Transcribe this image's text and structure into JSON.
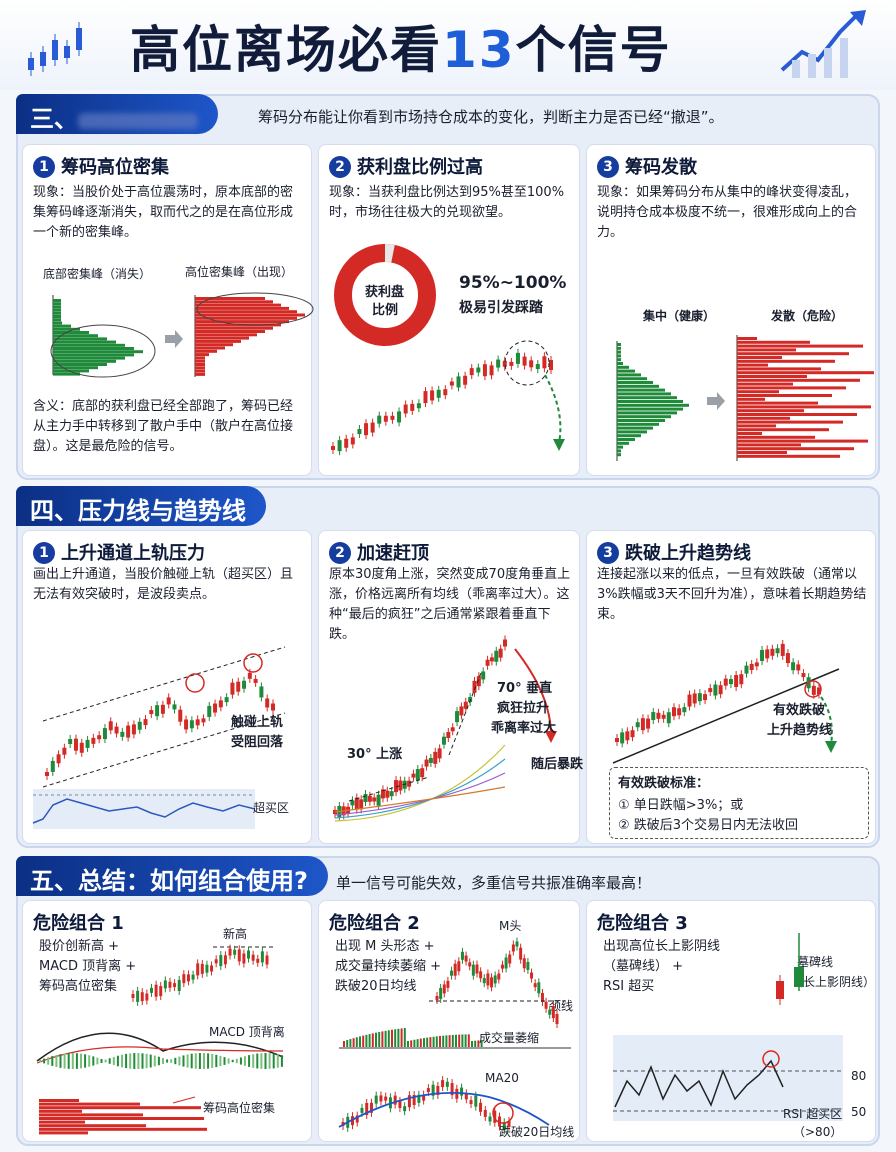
{
  "title": {
    "main": "高位离场必看",
    "number": "13",
    "suffix": "个信号"
  },
  "s3": {
    "tag": "三、",
    "desc": "筹码分布能让你看到市场持仓成本的变化，判断主力是否已经“撤退”。",
    "c1": {
      "num": "1",
      "title": "筹码高位密集",
      "phenomenon": "现象：当股价处于高位震荡时，原本底部的密集筹码峰逐渐消失，取而代之的是在高位形成一个新的密集峰。",
      "label_left": "底部密集峰（消失）",
      "label_right": "高位密集峰（出现）",
      "meaning": "含义：底部的获利盘已经全部跑了，筹码已经从主力手中转移到了散户手中（散户在高位接盘）。这是最危险的信号。"
    },
    "c2": {
      "num": "2",
      "title": "获利盘比例过高",
      "phenomenon": "现象：当获利盘比例达到95%甚至100%时，市场往往极大的兑现欲望。",
      "donut_l1": "获利盘",
      "donut_l2": "比例",
      "pct": "95%~100%",
      "pct_note": "极易引发踩踏"
    },
    "c3": {
      "num": "3",
      "title": "筹码发散",
      "phenomenon": "现象：如果筹码分布从集中的峰状变得凌乱，说明持仓成本极度不统一，很难形成向上的合力。",
      "label_left": "集中（健康）",
      "label_right": "发散（危险）"
    }
  },
  "s4": {
    "tag": "四、压力线与趋势线",
    "c1": {
      "num": "1",
      "title": "上升通道上轨压力",
      "text": "画出上升通道，当股价触碰上轨（超买区）且无法有效突破时，是波段卖点。",
      "note1": "触碰上轨",
      "note2": "受阻回落",
      "overbought": "超买区"
    },
    "c2": {
      "num": "2",
      "title": "加速赶顶",
      "text": "原本30度角上涨，突然变成70度角垂直上涨，价格远离所有均线（乖离率过大）。这种“最后的疯狂”之后通常紧跟着垂直下跌。",
      "angle30": "30° 上涨",
      "angle70a": "70° 垂直",
      "angle70b": "疯狂拉升",
      "angle70c": "乖离率过大",
      "after": "随后暴跌"
    },
    "c3": {
      "num": "3",
      "title": "跌破上升趋势线",
      "text": "连接起涨以来的低点，一旦有效跌破（通常以3%跌幅或3天不回升为准），意味着长期趋势结束。",
      "break1": "有效跌破",
      "break2": "上升趋势线",
      "std_title": "有效跌破标准：",
      "std1": "① 单日跌幅>3%；或",
      "std2": "② 跌破后3个交易日内无法收回"
    }
  },
  "s5": {
    "tag": "五、总结：如何组合使用?",
    "desc": "单一信号可能失效，多重信号共振准确率最高！",
    "c1": {
      "title": "危险组合 1",
      "l1": "股价创新高 +",
      "l2": "MACD 顶背离 +",
      "l3": "筹码高位密集",
      "new_high": "新高",
      "macd": "MACD 顶背离",
      "chips": "筹码高位密集"
    },
    "c2": {
      "title": "危险组合 2",
      "l1": "出现 M 头形态 +",
      "l2": "成交量持续萎缩 +",
      "l3": "跌破20日均线",
      "m_top": "M头",
      "neckline": "颈线",
      "vol": "成交量萎缩",
      "ma20": "MA20",
      "break20": "跌破20日均线"
    },
    "c3": {
      "title": "危险组合 3",
      "l1": "出现高位长上影阴线",
      "l2": "（墓碑线） +",
      "l3": "RSI 超买",
      "tomb1": "墓碑线",
      "tomb2": "（长上影阴线）",
      "rsi80": "80",
      "rsi50": "50",
      "rsi_zone1": "RSI 超买区",
      "rsi_zone2": "（>80）"
    }
  },
  "colors": {
    "navy": "#0b2f84",
    "blue": "#1e56c9",
    "red": "#d42a26",
    "green": "#1f8a3a"
  }
}
